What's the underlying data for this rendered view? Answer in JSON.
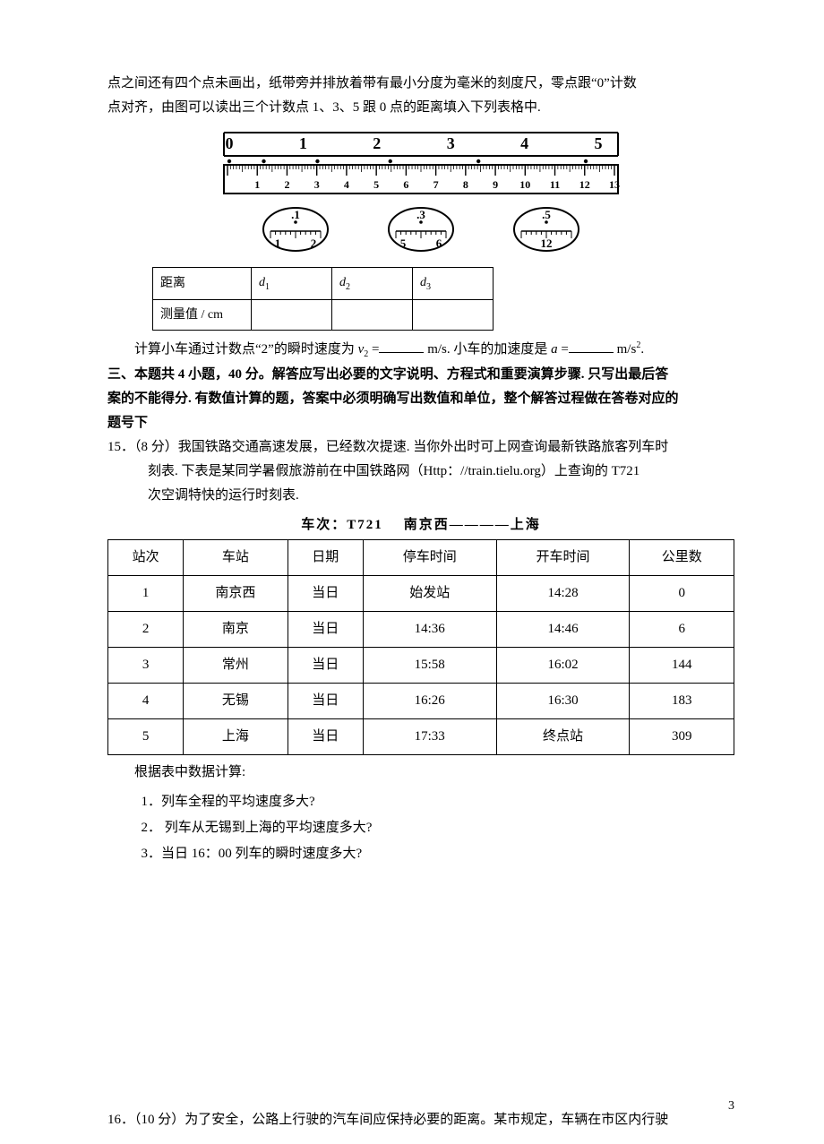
{
  "intro": {
    "line1": "点之间还有四个点未画出，纸带旁并排放着带有最小分度为毫米的刻度尺，零点跟“0”计数",
    "line2": "点对齐，由图可以读出三个计数点 1、3、5 跟 0 点的距离填入下列表格中."
  },
  "ruler": {
    "top_labels": [
      "0",
      "1",
      "2",
      "3",
      "4",
      "5"
    ],
    "bottom_labels": [
      "1",
      "2",
      "3",
      "4",
      "5",
      "6",
      "7",
      "8",
      "9",
      "10",
      "11",
      "12",
      "13"
    ],
    "colors": {
      "stroke": "#000000",
      "fill_bg": "#ffffff"
    }
  },
  "magnifiers": [
    {
      "top": ".1",
      "labels": [
        "1",
        "2"
      ]
    },
    {
      "top": ".3",
      "labels": [
        "5",
        "6"
      ]
    },
    {
      "top": ".5",
      "labels": [
        "12"
      ]
    }
  ],
  "small_table": {
    "row1_hdr": "距离",
    "row1_cells": [
      "d",
      "d",
      "d"
    ],
    "row1_subs": [
      "1",
      "2",
      "3"
    ],
    "row2_hdr": "测量值 / cm"
  },
  "calc": {
    "prefix": "计算小车通过计数点“2”的瞬时速度为 ",
    "v_sym": "v",
    "v_sub": "2",
    "eq": " =",
    "unit1": " m/s. 小车的加速度是 ",
    "a_sym": "a",
    "eq2": " =",
    "unit2": " m/s",
    "sup2": "2",
    "end": "."
  },
  "section3": {
    "l1": "三、本题共 4 小题，40 分。解答应写出必要的文字说明、方程式和重要演算步骤. 只写出最后答",
    "l2": "案的不能得分. 有数值计算的题，答案中必须明确写出数值和单位，整个解答过程做在答卷对应的",
    "l3": "题号下"
  },
  "q15": {
    "num": "15．（8 分）",
    "body1": "我国铁路交通高速发展，已经数次提速. 当你外出时可上网查询最新铁路旅客列车时",
    "body2": "刻表.  下表是某同学暑假旅游前在中国铁路网（Http：//train.tielu.org）上查询的 T721",
    "body3": "次空调特快的运行时刻表."
  },
  "train_title_a": "车次：T721",
  "train_title_b": "南京西————上海",
  "big_table": {
    "headers": [
      "站次",
      "车站",
      "日期",
      "停车时间",
      "开车时间",
      "公里数"
    ],
    "rows": [
      [
        "1",
        "南京西",
        "当日",
        "始发站",
        "14:28",
        "0"
      ],
      [
        "2",
        "南京",
        "当日",
        "14:36",
        "14:46",
        "6"
      ],
      [
        "3",
        "常州",
        "当日",
        "15:58",
        "16:02",
        "144"
      ],
      [
        "4",
        "无锡",
        "当日",
        "16:26",
        "16:30",
        "183"
      ],
      [
        "5",
        "上海",
        "当日",
        "17:33",
        "终点站",
        "309"
      ]
    ]
  },
  "q15_tail": "根据表中数据计算:",
  "q15_subs": [
    "1．列车全程的平均速度多大?",
    "2． 列车从无锡到上海的平均速度多大?",
    "3．当日 16：00 列车的瞬时速度多大?"
  ],
  "q16": "16．（10 分）为了安全，公路上行驶的汽车间应保持必要的距离。某市规定，车辆在市区内行驶",
  "page_num": "3"
}
